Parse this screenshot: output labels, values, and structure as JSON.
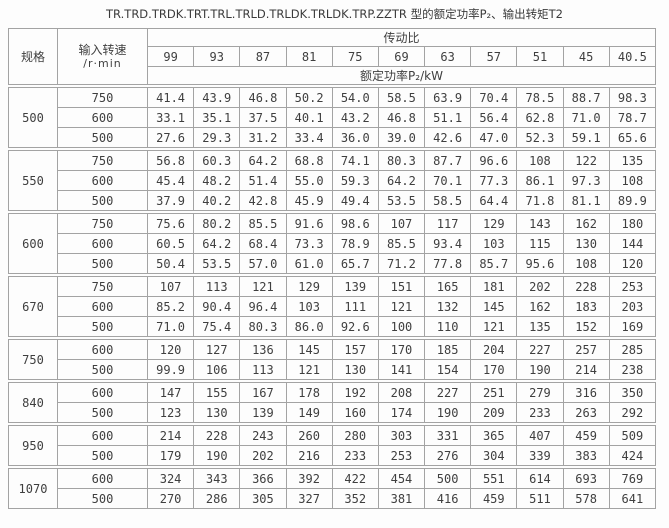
{
  "title": "TR.TRD.TRDK.TRT.TRL.TRLD.TRLDK.TRLDK.TRP.ZZTR 型的额定功率P₂、输出转矩T2",
  "colors": {
    "border": "#a3a3a3",
    "text": "#3f3f3f",
    "background": "#fdfdfd"
  },
  "table": {
    "spec_header": "规格",
    "speed_header_line1": "输入转速",
    "speed_header_line2": "/r·min",
    "ratio_header": "传动比",
    "power_header": "额定功率P₂/kW",
    "ratios": [
      "99",
      "93",
      "87",
      "81",
      "75",
      "69",
      "63",
      "57",
      "51",
      "45",
      "40.5"
    ],
    "groups": [
      {
        "spec": "500",
        "rows": [
          {
            "speed": "750",
            "values": [
              "41.4",
              "43.9",
              "46.8",
              "50.2",
              "54.0",
              "58.5",
              "63.9",
              "70.4",
              "78.5",
              "88.7",
              "98.3"
            ]
          },
          {
            "speed": "600",
            "values": [
              "33.1",
              "35.1",
              "37.5",
              "40.1",
              "43.2",
              "46.8",
              "51.1",
              "56.4",
              "62.8",
              "71.0",
              "78.7"
            ]
          },
          {
            "speed": "500",
            "values": [
              "27.6",
              "29.3",
              "31.2",
              "33.4",
              "36.0",
              "39.0",
              "42.6",
              "47.0",
              "52.3",
              "59.1",
              "65.6"
            ]
          }
        ]
      },
      {
        "spec": "550",
        "rows": [
          {
            "speed": "750",
            "values": [
              "56.8",
              "60.3",
              "64.2",
              "68.8",
              "74.1",
              "80.3",
              "87.7",
              "96.6",
              "108",
              "122",
              "135"
            ]
          },
          {
            "speed": "600",
            "values": [
              "45.4",
              "48.2",
              "51.4",
              "55.0",
              "59.3",
              "64.2",
              "70.1",
              "77.3",
              "86.1",
              "97.3",
              "108"
            ]
          },
          {
            "speed": "500",
            "values": [
              "37.9",
              "40.2",
              "42.8",
              "45.9",
              "49.4",
              "53.5",
              "58.5",
              "64.4",
              "71.8",
              "81.1",
              "89.9"
            ]
          }
        ]
      },
      {
        "spec": "600",
        "rows": [
          {
            "speed": "750",
            "values": [
              "75.6",
              "80.2",
              "85.5",
              "91.6",
              "98.6",
              "107",
              "117",
              "129",
              "143",
              "162",
              "180"
            ]
          },
          {
            "speed": "600",
            "values": [
              "60.5",
              "64.2",
              "68.4",
              "73.3",
              "78.9",
              "85.5",
              "93.4",
              "103",
              "115",
              "130",
              "144"
            ]
          },
          {
            "speed": "500",
            "values": [
              "50.4",
              "53.5",
              "57.0",
              "61.0",
              "65.7",
              "71.2",
              "77.8",
              "85.7",
              "95.6",
              "108",
              "120"
            ]
          }
        ]
      },
      {
        "spec": "670",
        "rows": [
          {
            "speed": "750",
            "values": [
              "107",
              "113",
              "121",
              "129",
              "139",
              "151",
              "165",
              "181",
              "202",
              "228",
              "253"
            ]
          },
          {
            "speed": "600",
            "values": [
              "85.2",
              "90.4",
              "96.4",
              "103",
              "111",
              "121",
              "132",
              "145",
              "162",
              "183",
              "203"
            ]
          },
          {
            "speed": "500",
            "values": [
              "71.0",
              "75.4",
              "80.3",
              "86.0",
              "92.6",
              "100",
              "110",
              "121",
              "135",
              "152",
              "169"
            ]
          }
        ]
      },
      {
        "spec": "750",
        "rows": [
          {
            "speed": "600",
            "values": [
              "120",
              "127",
              "136",
              "145",
              "157",
              "170",
              "185",
              "204",
              "227",
              "257",
              "285"
            ]
          },
          {
            "speed": "500",
            "values": [
              "99.9",
              "106",
              "113",
              "121",
              "130",
              "141",
              "154",
              "170",
              "190",
              "214",
              "238"
            ]
          }
        ]
      },
      {
        "spec": "840",
        "rows": [
          {
            "speed": "600",
            "values": [
              "147",
              "155",
              "167",
              "178",
              "192",
              "208",
              "227",
              "251",
              "279",
              "316",
              "350"
            ]
          },
          {
            "speed": "500",
            "values": [
              "123",
              "130",
              "139",
              "149",
              "160",
              "174",
              "190",
              "209",
              "233",
              "263",
              "292"
            ]
          }
        ]
      },
      {
        "spec": "950",
        "rows": [
          {
            "speed": "600",
            "values": [
              "214",
              "228",
              "243",
              "260",
              "280",
              "303",
              "331",
              "365",
              "407",
              "459",
              "509"
            ]
          },
          {
            "speed": "500",
            "values": [
              "179",
              "190",
              "202",
              "216",
              "233",
              "253",
              "276",
              "304",
              "339",
              "383",
              "424"
            ]
          }
        ]
      },
      {
        "spec": "1070",
        "rows": [
          {
            "speed": "600",
            "values": [
              "324",
              "343",
              "366",
              "392",
              "422",
              "454",
              "500",
              "551",
              "614",
              "693",
              "769"
            ]
          },
          {
            "speed": "500",
            "values": [
              "270",
              "286",
              "305",
              "327",
              "352",
              "381",
              "416",
              "459",
              "511",
              "578",
              "641"
            ]
          }
        ]
      }
    ]
  }
}
